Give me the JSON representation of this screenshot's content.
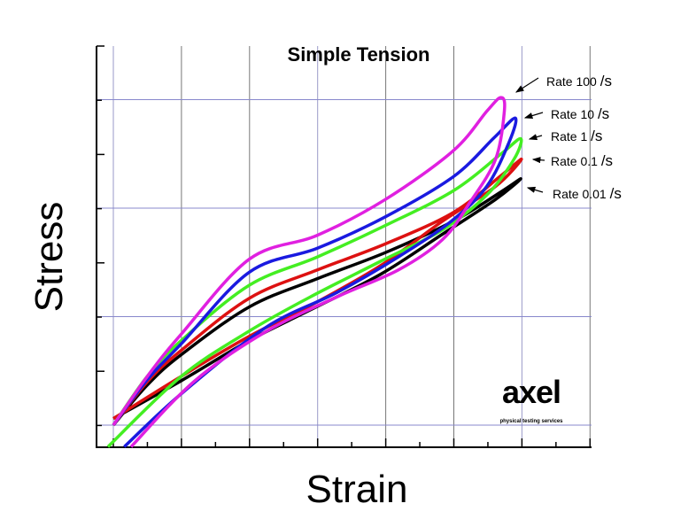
{
  "chart_data": {
    "type": "line",
    "title": "Simple Tension",
    "xlabel": "Strain",
    "ylabel": "Stress",
    "xlim": [
      -0.25,
      7
    ],
    "ylim": [
      -0.2,
      3.5
    ],
    "grid": true,
    "tick_labels_shown": false,
    "series": [
      {
        "name": "Rate 100/s",
        "label_main": "Rate 100",
        "label_unit": "/s",
        "color": "#e020e0",
        "points": [
          [
            0,
            0
          ],
          [
            0.5,
            0.45
          ],
          [
            1,
            0.84
          ],
          [
            2,
            1.53
          ],
          [
            3,
            1.75
          ],
          [
            4,
            2.08
          ],
          [
            5,
            2.53
          ],
          [
            5.5,
            2.9
          ],
          [
            5.7,
            3.02
          ],
          [
            5.75,
            2.9
          ],
          [
            5.62,
            2.45
          ],
          [
            5.23,
            2.04
          ],
          [
            4.84,
            1.71
          ],
          [
            4.19,
            1.43
          ],
          [
            3.28,
            1.18
          ],
          [
            2.24,
            0.86
          ],
          [
            1.2,
            0.41
          ],
          [
            0.26,
            -0.2
          ]
        ]
      },
      {
        "name": "Rate 10/s",
        "label_main": "Rate 10",
        "label_unit": "/s",
        "color": "#1a1ae0",
        "points": [
          [
            0,
            0
          ],
          [
            0.5,
            0.42
          ],
          [
            1,
            0.75
          ],
          [
            2,
            1.41
          ],
          [
            3,
            1.63
          ],
          [
            4,
            1.92
          ],
          [
            5,
            2.29
          ],
          [
            5.6,
            2.65
          ],
          [
            5.91,
            2.83
          ],
          [
            5.82,
            2.61
          ],
          [
            5.49,
            2.2
          ],
          [
            4.97,
            1.88
          ],
          [
            4.19,
            1.55
          ],
          [
            3.28,
            1.22
          ],
          [
            2.24,
            0.9
          ],
          [
            1,
            0.29
          ],
          [
            0.16,
            -0.2
          ]
        ]
      },
      {
        "name": "Rate 1/s",
        "label_main": "Rate 1",
        "label_unit": "/s",
        "color": "#44ee22",
        "points": [
          [
            0,
            0
          ],
          [
            0.5,
            0.45
          ],
          [
            1,
            0.78
          ],
          [
            2,
            1.29
          ],
          [
            3,
            1.55
          ],
          [
            4,
            1.84
          ],
          [
            5,
            2.16
          ],
          [
            5.7,
            2.5
          ],
          [
            5.99,
            2.64
          ],
          [
            5.89,
            2.45
          ],
          [
            5.49,
            2.12
          ],
          [
            4.84,
            1.8
          ],
          [
            3.93,
            1.51
          ],
          [
            2.89,
            1.18
          ],
          [
            1.98,
            0.86
          ],
          [
            1,
            0.45
          ],
          [
            -0.08,
            -0.2
          ]
        ]
      },
      {
        "name": "Rate 0.1/s",
        "label_main": "Rate 0.1",
        "label_unit": "/s",
        "color": "#dd1111",
        "points": [
          [
            0,
            0
          ],
          [
            0.5,
            0.4
          ],
          [
            1,
            0.69
          ],
          [
            2,
            1.17
          ],
          [
            3,
            1.43
          ],
          [
            4,
            1.67
          ],
          [
            5,
            1.96
          ],
          [
            5.7,
            2.3
          ],
          [
            6,
            2.45
          ],
          [
            5.62,
            2.2
          ],
          [
            4.84,
            1.88
          ],
          [
            3.93,
            1.47
          ],
          [
            2.89,
            1.1
          ],
          [
            2,
            0.82
          ],
          [
            1,
            0.45
          ],
          [
            0,
            0.06
          ]
        ]
      },
      {
        "name": "Rate 0.01/s",
        "label_main": "Rate 0.01",
        "label_unit": "/s",
        "color": "#000000",
        "points": [
          [
            0,
            0
          ],
          [
            0.5,
            0.37
          ],
          [
            1,
            0.65
          ],
          [
            2,
            1.09
          ],
          [
            3,
            1.35
          ],
          [
            4,
            1.59
          ],
          [
            5,
            1.88
          ],
          [
            5.7,
            2.15
          ],
          [
            5.99,
            2.27
          ],
          [
            5.62,
            2.08
          ],
          [
            4.84,
            1.76
          ],
          [
            3.93,
            1.39
          ],
          [
            2.89,
            1.06
          ],
          [
            2,
            0.78
          ],
          [
            1,
            0.41
          ],
          [
            0,
            0.06
          ]
        ]
      }
    ]
  },
  "logo": {
    "name": "axel",
    "tagline": "physical testing services"
  }
}
